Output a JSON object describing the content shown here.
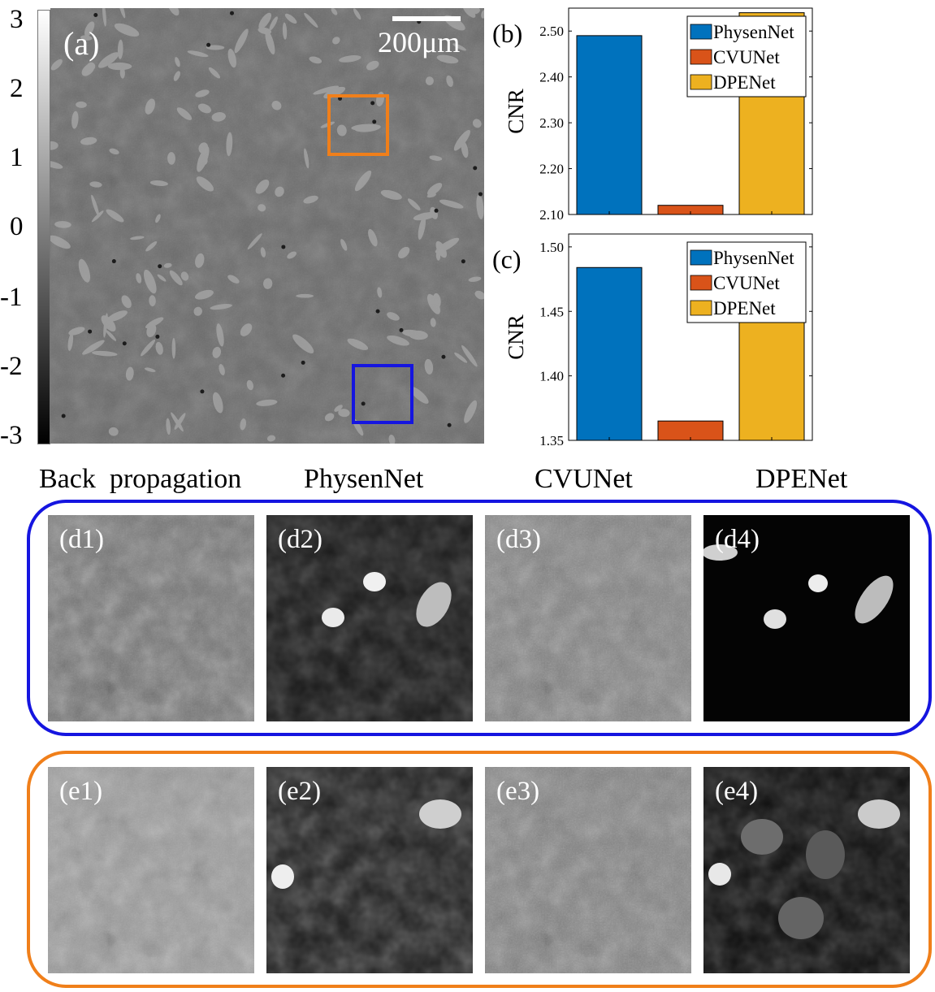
{
  "colorbar": {
    "ticks": [
      "3",
      "2",
      "1",
      "0",
      "-1",
      "-2",
      "-3"
    ]
  },
  "panel_a": {
    "label": "(a)",
    "scalebar_label": "200μm",
    "roi_colors": {
      "orange": "#F07F1A",
      "blue": "#1515E0"
    }
  },
  "columns": [
    "Back  propagation",
    "PhysenNet",
    "CVUNet",
    "DPENet"
  ],
  "rows": {
    "d": {
      "labels": [
        "(d1)",
        "(d2)",
        "(d3)",
        "(d4)"
      ],
      "frame_color": "#1515E0"
    },
    "e": {
      "labels": [
        "(e1)",
        "(e2)",
        "(e3)",
        "(e4)"
      ],
      "frame_color": "#F07F1A"
    }
  },
  "chart_data": [
    {
      "id": "b",
      "panel_label": "(b)",
      "type": "bar",
      "categories": [
        "PhysenNet",
        "CVUNet",
        "DPENet"
      ],
      "values": [
        2.49,
        2.12,
        2.54
      ],
      "ylabel": "CNR",
      "ylim": [
        2.1,
        2.55
      ],
      "yticks": [
        "2.10",
        "2.20",
        "2.30",
        "2.40",
        "2.50"
      ],
      "colors": [
        "#0072BD",
        "#D95319",
        "#EDB120"
      ],
      "legend": [
        "PhysenNet",
        "CVUNet",
        "DPENet"
      ],
      "legend_position": "top-center"
    },
    {
      "id": "c",
      "panel_label": "(c)",
      "type": "bar",
      "categories": [
        "PhysenNet",
        "CVUNet",
        "DPENet"
      ],
      "values": [
        1.484,
        1.365,
        1.502
      ],
      "ylabel": "CNR",
      "ylim": [
        1.35,
        1.51
      ],
      "yticks": [
        "1.35",
        "1.40",
        "1.45",
        "1.50"
      ],
      "colors": [
        "#0072BD",
        "#D95319",
        "#EDB120"
      ],
      "legend": [
        "PhysenNet",
        "CVUNet",
        "DPENet"
      ],
      "legend_position": "top-center"
    }
  ]
}
